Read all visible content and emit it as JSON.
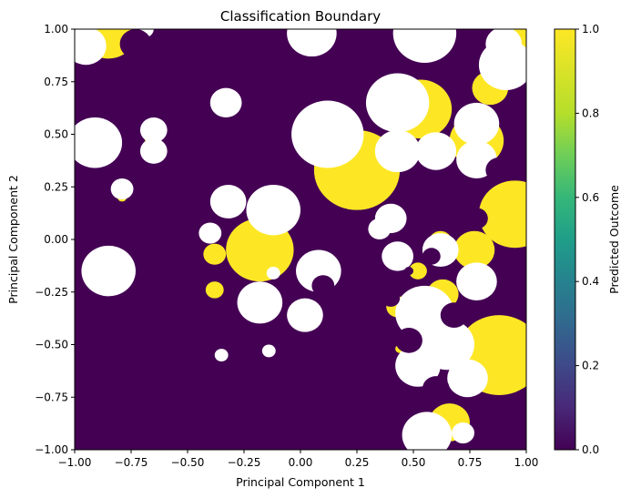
{
  "chart_data": {
    "type": "heatmap",
    "title": "Classification Boundary",
    "xlabel": "Principal Component 1",
    "ylabel": "Principal Component 2",
    "xlim": [
      -1.0,
      1.0
    ],
    "ylim": [
      -1.0,
      1.0
    ],
    "x_ticks": [
      "−1.00",
      "−0.75",
      "−0.50",
      "−0.25",
      "0.00",
      "0.25",
      "0.50",
      "0.75",
      "1.00"
    ],
    "y_ticks": [
      "−1.00",
      "−0.75",
      "−0.50",
      "−0.25",
      "0.00",
      "0.25",
      "0.50",
      "0.75",
      "1.00"
    ],
    "colorbar": {
      "label": "Predicted Outcome",
      "range": [
        0.0,
        1.0
      ],
      "ticks": [
        "0.0",
        "0.2",
        "0.4",
        "0.6",
        "0.8",
        "1.0"
      ],
      "colormap": "viridis"
    },
    "grid": false,
    "colors": {
      "class_0": "#440154",
      "class_1": "#fde725",
      "background": "#ffffff"
    },
    "regions": {
      "class_1_areas": [
        {
          "x": -0.85,
          "y": 0.98,
          "r": 0.12
        },
        {
          "x": 0.97,
          "y": 0.96,
          "r": 0.06
        },
        {
          "x": -0.96,
          "y": 0.5,
          "r": 0.03
        },
        {
          "x": -0.66,
          "y": 0.48,
          "r": 0.03
        },
        {
          "x": -0.36,
          "y": 0.68,
          "r": 0.02
        },
        {
          "x": -0.79,
          "y": 0.2,
          "r": 0.02
        },
        {
          "x": 0.53,
          "y": 0.62,
          "r": 0.14
        },
        {
          "x": 0.84,
          "y": 0.72,
          "r": 0.08
        },
        {
          "x": 0.78,
          "y": 0.47,
          "r": 0.12
        },
        {
          "x": 0.25,
          "y": 0.33,
          "r": 0.19
        },
        {
          "x": 0.17,
          "y": 0.51,
          "r": 0.07
        },
        {
          "x": 0.95,
          "y": 0.12,
          "r": 0.16
        },
        {
          "x": 0.77,
          "y": -0.05,
          "r": 0.09
        },
        {
          "x": 0.63,
          "y": -0.26,
          "r": 0.07
        },
        {
          "x": 0.62,
          "y": -0.01,
          "r": 0.05
        },
        {
          "x": 0.52,
          "y": -0.15,
          "r": 0.04
        },
        {
          "x": 0.43,
          "y": -0.32,
          "r": 0.05
        },
        {
          "x": -0.18,
          "y": -0.05,
          "r": 0.15
        },
        {
          "x": -0.38,
          "y": -0.07,
          "r": 0.05
        },
        {
          "x": -0.38,
          "y": -0.24,
          "r": 0.04
        },
        {
          "x": 0.88,
          "y": -0.55,
          "r": 0.19
        },
        {
          "x": 0.66,
          "y": -0.87,
          "r": 0.09
        },
        {
          "x": 0.44,
          "y": -0.52,
          "r": 0.02
        },
        {
          "x": -0.79,
          "y": -0.19,
          "r": 0.02
        }
      ],
      "unclassified_areas": [
        {
          "x": -0.95,
          "y": 0.92,
          "r": 0.09
        },
        {
          "x": -0.69,
          "y": 1.0,
          "r": 0.04
        },
        {
          "x": 0.05,
          "y": 0.98,
          "r": 0.11
        },
        {
          "x": 0.55,
          "y": 0.98,
          "r": 0.14
        },
        {
          "x": 0.9,
          "y": 0.93,
          "r": 0.08
        },
        {
          "x": -0.91,
          "y": 0.46,
          "r": 0.12
        },
        {
          "x": -0.65,
          "y": 0.52,
          "r": 0.06
        },
        {
          "x": -0.65,
          "y": 0.42,
          "r": 0.06
        },
        {
          "x": -0.33,
          "y": 0.65,
          "r": 0.07
        },
        {
          "x": -0.79,
          "y": 0.24,
          "r": 0.05
        },
        {
          "x": 0.12,
          "y": 0.5,
          "r": 0.16
        },
        {
          "x": 0.43,
          "y": 0.42,
          "r": 0.1
        },
        {
          "x": 0.43,
          "y": 0.65,
          "r": 0.14
        },
        {
          "x": 0.78,
          "y": 0.55,
          "r": 0.1
        },
        {
          "x": 0.78,
          "y": 0.38,
          "r": 0.09
        },
        {
          "x": 0.6,
          "y": 0.42,
          "r": 0.09
        },
        {
          "x": 0.91,
          "y": 0.83,
          "r": 0.12
        },
        {
          "x": -0.85,
          "y": -0.15,
          "r": 0.12
        },
        {
          "x": -0.4,
          "y": 0.03,
          "r": 0.05
        },
        {
          "x": -0.12,
          "y": 0.14,
          "r": 0.12
        },
        {
          "x": -0.32,
          "y": 0.18,
          "r": 0.08
        },
        {
          "x": -0.18,
          "y": -0.3,
          "r": 0.1
        },
        {
          "x": 0.08,
          "y": -0.15,
          "r": 0.1
        },
        {
          "x": 0.02,
          "y": -0.36,
          "r": 0.08
        },
        {
          "x": 0.43,
          "y": -0.08,
          "r": 0.07
        },
        {
          "x": 0.4,
          "y": 0.1,
          "r": 0.07
        },
        {
          "x": 0.62,
          "y": -0.05,
          "r": 0.08
        },
        {
          "x": 0.55,
          "y": -0.35,
          "r": 0.13
        },
        {
          "x": 0.52,
          "y": -0.6,
          "r": 0.1
        },
        {
          "x": 0.65,
          "y": -0.5,
          "r": 0.12
        },
        {
          "x": 0.78,
          "y": -0.2,
          "r": 0.09
        },
        {
          "x": -0.35,
          "y": -0.55,
          "r": 0.03
        },
        {
          "x": -0.14,
          "y": -0.53,
          "r": 0.03
        },
        {
          "x": 0.74,
          "y": -0.66,
          "r": 0.09
        },
        {
          "x": 0.56,
          "y": -0.93,
          "r": 0.11
        },
        {
          "x": 0.72,
          "y": -0.92,
          "r": 0.05
        },
        {
          "x": 0.35,
          "y": 0.05,
          "r": 0.05
        },
        {
          "x": -0.12,
          "y": -0.16,
          "r": 0.03
        }
      ],
      "class_0_overlays": [
        {
          "x": -0.73,
          "y": 0.93,
          "r": 0.07
        },
        {
          "x": 0.88,
          "y": 0.33,
          "r": 0.06
        },
        {
          "x": 0.78,
          "y": 0.1,
          "r": 0.05
        },
        {
          "x": 0.48,
          "y": -0.15,
          "r": 0.02
        },
        {
          "x": 0.58,
          "y": -0.08,
          "r": 0.04
        },
        {
          "x": 0.68,
          "y": -0.36,
          "r": 0.06
        },
        {
          "x": 0.48,
          "y": -0.48,
          "r": 0.06
        },
        {
          "x": 0.6,
          "y": -0.71,
          "r": 0.06
        },
        {
          "x": 0.1,
          "y": -0.22,
          "r": 0.05
        },
        {
          "x": 0.4,
          "y": -0.28,
          "r": 0.04
        }
      ]
    }
  }
}
